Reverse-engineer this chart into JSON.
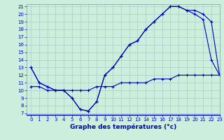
{
  "hours": [
    0,
    1,
    2,
    3,
    4,
    5,
    6,
    7,
    8,
    9,
    10,
    11,
    12,
    13,
    14,
    15,
    16,
    17,
    18,
    19,
    20,
    21,
    22,
    23
  ],
  "line_top": [
    13,
    11,
    10.5,
    10,
    10,
    9,
    7.5,
    7.3,
    8.5,
    12,
    13,
    14.5,
    16,
    16.5,
    18,
    19,
    20,
    21,
    21,
    20.5,
    20.5,
    20,
    19,
    12
  ],
  "line_mid": [
    13,
    11,
    10.5,
    10,
    10,
    9,
    7.5,
    7.3,
    8.5,
    12,
    13,
    14.5,
    16,
    16.5,
    18,
    19,
    20,
    21,
    21,
    20.5,
    20,
    19.3,
    14,
    12
  ],
  "line_bot": [
    10.5,
    10.5,
    10,
    10,
    10,
    10,
    10,
    10,
    10.5,
    10.5,
    10.5,
    11,
    11,
    11,
    11,
    11.5,
    11.5,
    11.5,
    12,
    12,
    12,
    12,
    12,
    12
  ],
  "ylim": [
    7,
    21
  ],
  "ylim_extra": 0.5,
  "xlim": [
    -0.5,
    23
  ],
  "yticks": [
    7,
    8,
    9,
    10,
    11,
    12,
    13,
    14,
    15,
    16,
    17,
    18,
    19,
    20,
    21
  ],
  "xticks": [
    0,
    1,
    2,
    3,
    4,
    5,
    6,
    7,
    8,
    9,
    10,
    11,
    12,
    13,
    14,
    15,
    16,
    17,
    18,
    19,
    20,
    21,
    22,
    23
  ],
  "xlabel": "Graphe des températures (°c)",
  "line_color": "#0000bb",
  "bg_color": "#cceedd",
  "grid_color": "#aacccc",
  "marker": "+",
  "linewidth": 0.8,
  "markersize": 3.5,
  "tick_fontsize": 5.0,
  "xlabel_fontsize": 6.5
}
